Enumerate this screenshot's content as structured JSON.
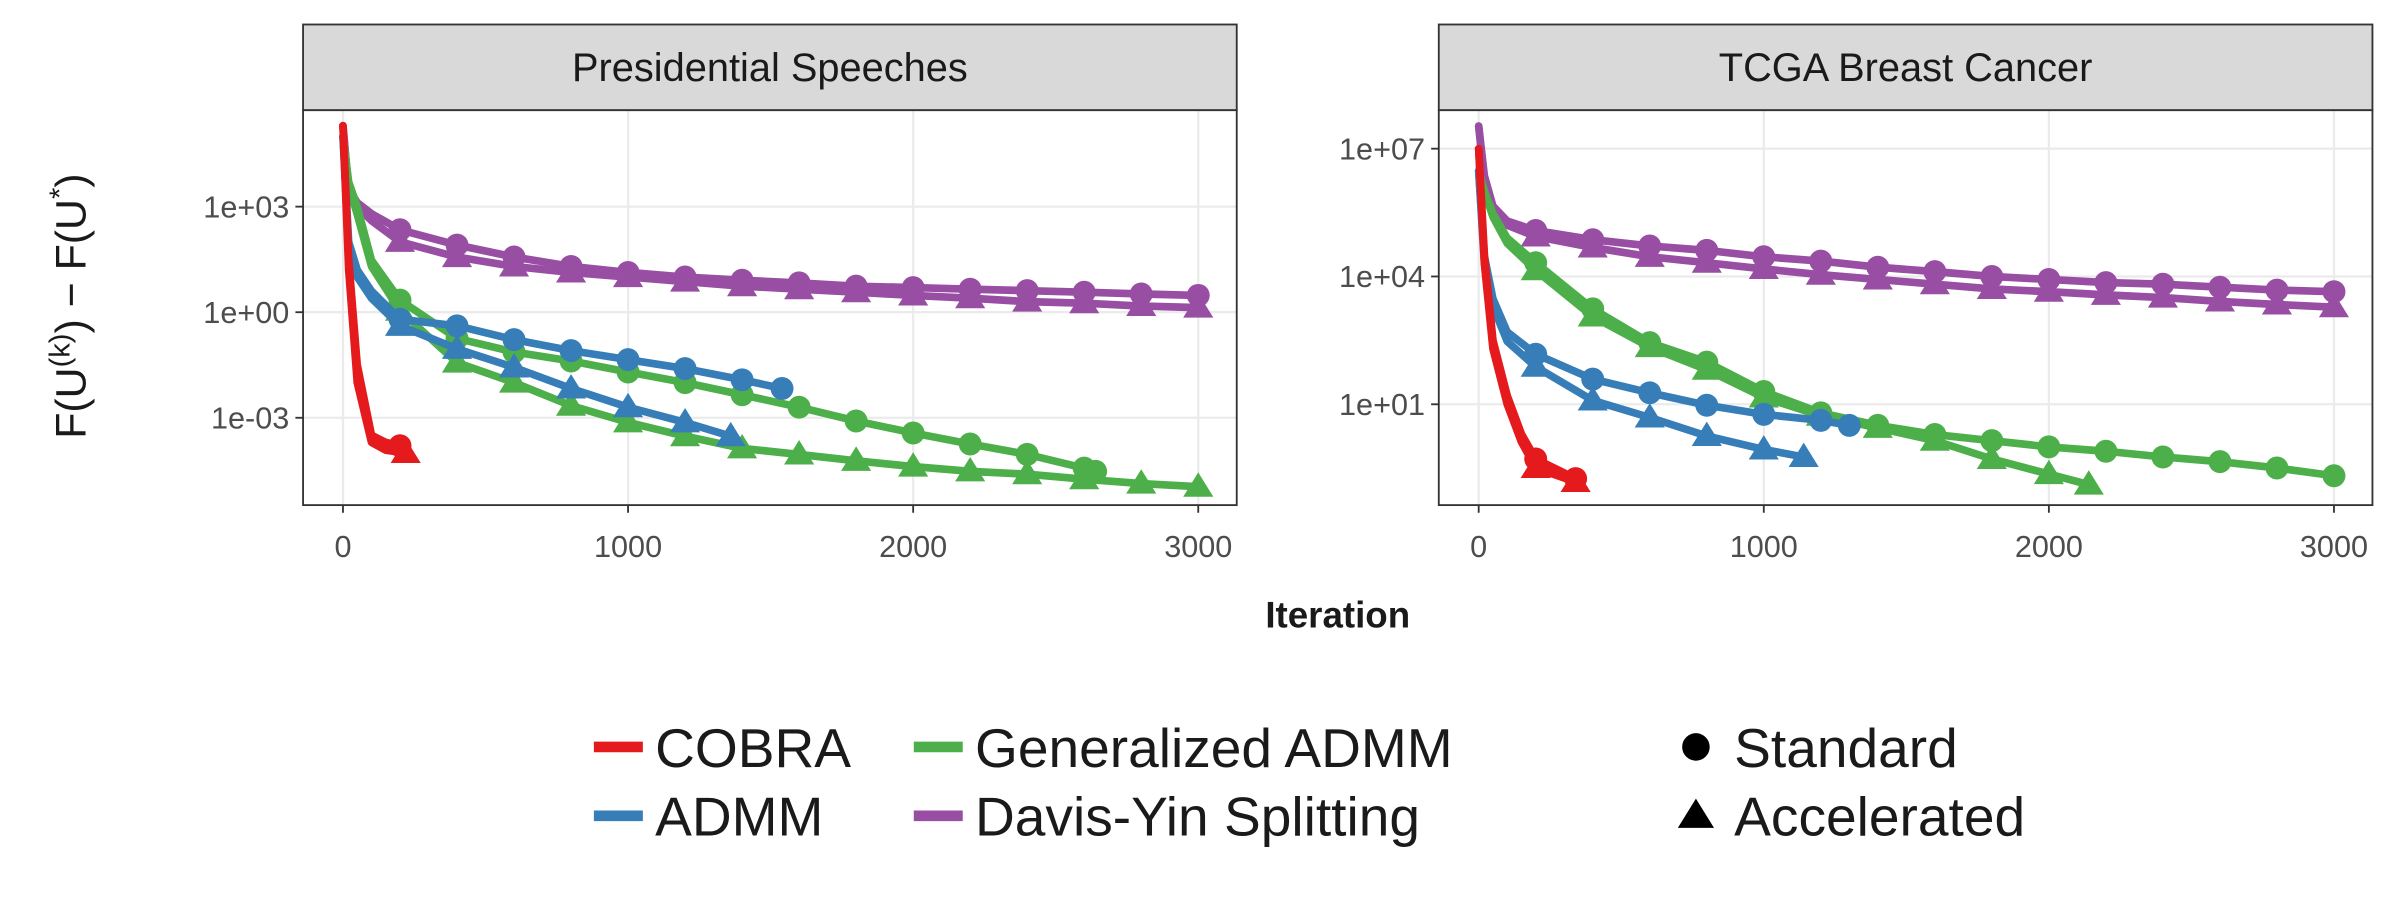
{
  "chart_data": {
    "type": "line",
    "log_y": true,
    "grid": true,
    "marker_every": 200,
    "xlabel": "Iteration",
    "ylabel": [
      "F(U",
      "(k)",
      ") − F(U",
      "*",
      ")"
    ],
    "methods": [
      {
        "name": "COBRA",
        "color": "#e41a1c"
      },
      {
        "name": "ADMM",
        "color": "#377eb8"
      },
      {
        "name": "Generalized ADMM",
        "color": "#4daf4a"
      },
      {
        "name": "Davis-Yin Splitting",
        "color": "#984ea3"
      }
    ],
    "variants": [
      {
        "name": "Standard",
        "marker": "circle"
      },
      {
        "name": "Accelerated",
        "marker": "triangle"
      }
    ],
    "panels": [
      {
        "title": "Presidential Speeches",
        "xlim": [
          -140,
          3135
        ],
        "xticks": [
          0,
          1000,
          2000,
          3000
        ],
        "ylim": [
          3.3e-06,
          550000
        ],
        "yticks": [
          {
            "value": 0.001,
            "label": "1e-03"
          },
          {
            "value": 1,
            "label": "1e+00"
          },
          {
            "value": 1000,
            "label": "1e+03"
          }
        ],
        "series": [
          {
            "color": "#984ea3",
            "marker": "circle",
            "x": [
              0,
              20,
              50,
              100,
              200,
              400,
              600,
              800,
              1000,
              1200,
              1400,
              1600,
              1800,
              2000,
              2200,
              2400,
              2600,
              2800,
              3000
            ],
            "values": [
              200000,
              3200,
              1300,
              630,
              220,
              81,
              37,
              20,
              13.5,
              10,
              8.1,
              6.8,
              5.5,
              5,
              4.5,
              4.1,
              3.7,
              3.3,
              3
            ]
          },
          {
            "color": "#984ea3",
            "marker": "triangle",
            "x": [
              0,
              20,
              50,
              100,
              200,
              400,
              600,
              800,
              1000,
              1200,
              1400,
              1600,
              1800,
              2000,
              2200,
              2400,
              2600,
              2800,
              3000
            ],
            "values": [
              200000,
              2500,
              1000,
              400,
              100,
              37,
              20,
              13.5,
              10,
              7.4,
              5.5,
              4.5,
              3.7,
              3,
              2.5,
              2,
              1.8,
              1.5,
              1.35
            ]
          },
          {
            "color": "#4daf4a",
            "marker": "circle",
            "x": [
              0,
              20,
              50,
              100,
              200,
              400,
              600,
              800,
              1000,
              1200,
              1400,
              1600,
              1800,
              2000,
              2200,
              2400,
              2600,
              2640
            ],
            "values": [
              100000,
              5000,
              1000,
              30,
              2.2,
              0.18,
              0.074,
              0.041,
              0.02,
              0.01,
              0.0045,
              0.002,
              0.00081,
              0.00037,
              0.00018,
              9.1e-05,
              3.7e-05,
              3e-05
            ]
          },
          {
            "color": "#4daf4a",
            "marker": "triangle",
            "x": [
              0,
              20,
              50,
              100,
              200,
              400,
              600,
              800,
              1000,
              1200,
              1400,
              1600,
              1800,
              2000,
              2200,
              2400,
              2600,
              2800,
              3000
            ],
            "values": [
              100000,
              4000,
              600,
              20,
              1.1,
              0.037,
              0.01,
              0.0022,
              0.00074,
              0.0003,
              0.000135,
              9.1e-05,
              6e-05,
              4.1e-05,
              3e-05,
              2.5e-05,
              1.8e-05,
              1.35e-05,
              1.1e-05
            ]
          },
          {
            "color": "#377eb8",
            "marker": "circle",
            "x": [
              0,
              20,
              50,
              100,
              200,
              400,
              600,
              800,
              1000,
              1200,
              1400,
              1540
            ],
            "values": [
              100000,
              100,
              16,
              4,
              0.63,
              0.41,
              0.166,
              0.081,
              0.045,
              0.025,
              0.012,
              0.0068
            ]
          },
          {
            "color": "#377eb8",
            "marker": "triangle",
            "x": [
              0,
              20,
              50,
              100,
              200,
              400,
              600,
              800,
              1000,
              1200,
              1360
            ],
            "values": [
              100000,
              60,
              10,
              2.5,
              0.41,
              0.091,
              0.027,
              0.0068,
              0.002,
              0.00074,
              0.0003
            ]
          },
          {
            "color": "#e41a1c",
            "marker": "circle",
            "x": [
              0,
              20,
              50,
              100,
              150,
              200
            ],
            "values": [
              200000,
              32,
              0.032,
              0.00032,
              0.0002,
              0.00016
            ]
          },
          {
            "color": "#e41a1c",
            "marker": "triangle",
            "x": [
              0,
              20,
              50,
              100,
              150,
              220
            ],
            "values": [
              200000,
              16,
              0.01,
              0.0002,
              0.00012,
              0.0001
            ]
          }
        ]
      },
      {
        "title": "TCGA Breast Cancer",
        "xlim": [
          -140,
          3135
        ],
        "xticks": [
          0,
          1000,
          2000,
          3000
        ],
        "ylim": [
          0.043,
          80000000
        ],
        "yticks": [
          {
            "value": 10,
            "label": "1e+01"
          },
          {
            "value": 10000,
            "label": "1e+04"
          },
          {
            "value": 10000000,
            "label": "1e+07"
          }
        ],
        "series": [
          {
            "color": "#984ea3",
            "marker": "circle",
            "x": [
              0,
              20,
              50,
              100,
              200,
              400,
              600,
              800,
              1000,
              1200,
              1400,
              1600,
              1800,
              2000,
              2200,
              2400,
              2600,
              2800,
              3000
            ],
            "values": [
              34000000,
              2300000,
              450000,
              200000,
              120000,
              73000,
              52000,
              41000,
              29000,
              23000,
              16500,
              13000,
              10000,
              8500,
              7200,
              6600,
              5600,
              4800,
              4400
            ]
          },
          {
            "color": "#984ea3",
            "marker": "triangle",
            "x": [
              0,
              20,
              50,
              100,
              200,
              400,
              600,
              800,
              1000,
              1200,
              1400,
              1600,
              1800,
              2000,
              2200,
              2400,
              2600,
              2800,
              3000
            ],
            "values": [
              34000000,
              1600000,
              320000,
              160000,
              87000,
              48000,
              29000,
              21000,
              15000,
              11000,
              8500,
              6600,
              5100,
              4400,
              3700,
              3200,
              2600,
              2200,
              1900
            ]
          },
          {
            "color": "#4daf4a",
            "marker": "circle",
            "x": [
              0,
              20,
              50,
              100,
              200,
              400,
              600,
              800,
              1000,
              1200,
              1400,
              1600,
              1800,
              2000,
              2200,
              2400,
              2600,
              2800,
              3000
            ],
            "values": [
              3000000,
              1000000,
              300000,
              80000,
              21000,
              1740,
              280,
              98,
              20,
              6.3,
              3.2,
              1.95,
              1.4,
              1,
              0.79,
              0.58,
              0.45,
              0.32,
              0.21
            ]
          },
          {
            "color": "#4daf4a",
            "marker": "triangle",
            "x": [
              0,
              20,
              50,
              100,
              200,
              400,
              600,
              800,
              1000,
              1200,
              1400,
              1600,
              1800,
              2000,
              2140
            ],
            "values": [
              3000000,
              1000000,
              250000,
              60000,
              14000,
              1150,
              220,
              65,
              14.5,
              5.4,
              2.8,
              1.4,
              0.52,
              0.23,
              0.13
            ]
          },
          {
            "color": "#377eb8",
            "marker": "circle",
            "x": [
              0,
              20,
              50,
              100,
              200,
              400,
              600,
              800,
              1000,
              1200,
              1300
            ],
            "values": [
              3000000,
              30000,
              3000,
              500,
              150,
              39,
              18.6,
              9.5,
              5.8,
              4.2,
              3.2
            ]
          },
          {
            "color": "#377eb8",
            "marker": "triangle",
            "x": [
              0,
              20,
              50,
              100,
              200,
              400,
              600,
              800,
              1000,
              1140
            ],
            "values": [
              3000000,
              20000,
              2000,
              300,
              76,
              12.3,
              4.9,
              1.8,
              0.87,
              0.58
            ]
          },
          {
            "color": "#e41a1c",
            "marker": "circle",
            "x": [
              0,
              20,
              50,
              100,
              150,
              200,
              340
            ],
            "values": [
              10000000,
              32000,
              320,
              16,
              2,
              0.52,
              0.18
            ]
          },
          {
            "color": "#e41a1c",
            "marker": "triangle",
            "x": [
              0,
              20,
              50,
              100,
              150,
              200,
              340
            ],
            "values": [
              10000000,
              20000,
              200,
              10,
              1.3,
              0.32,
              0.15
            ]
          }
        ]
      }
    ]
  }
}
